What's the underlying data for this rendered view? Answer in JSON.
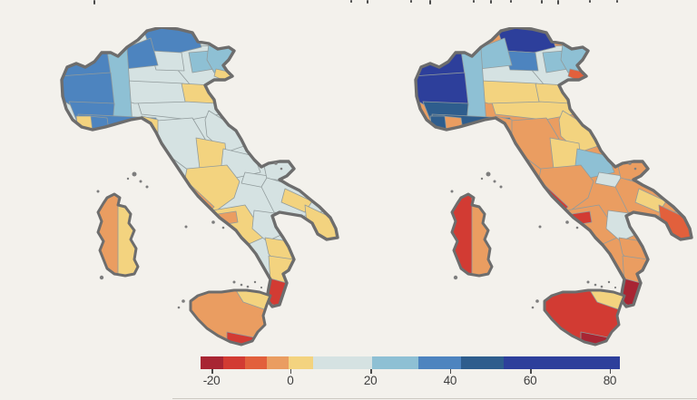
{
  "page": {
    "background": "#f3f1ec"
  },
  "legend": {
    "ticks": [
      {
        "label": "-20",
        "pct": 2.6
      },
      {
        "label": "0",
        "pct": 21.4
      },
      {
        "label": "20",
        "pct": 40.5
      },
      {
        "label": "40",
        "pct": 59.5
      },
      {
        "label": "60",
        "pct": 78.6
      },
      {
        "label": "80",
        "pct": 97.6
      }
    ],
    "colors": [
      "#a82533",
      "#d23b33",
      "#e2603c",
      "#ea9d61",
      "#f3d37f",
      "#d5e2e2",
      "#8ec0d4",
      "#4d84bf",
      "#2e5d8d",
      "#2d3f9b"
    ],
    "thresholds": [
      -17,
      -11,
      -6,
      0,
      6,
      20,
      32,
      43,
      53
    ],
    "segments_pct": [
      5.4,
      5.2,
      5.2,
      5.2,
      5.8,
      14.1,
      11.0,
      10.2,
      10.2,
      27.7
    ]
  },
  "chart_data": {
    "type": "heatmap",
    "subtype": "choropleth_map_pair",
    "geography": "Italy, provinces",
    "legend": {
      "scale_ticks": [
        -20,
        0,
        20,
        40,
        60,
        80
      ],
      "range_approx": [
        -23,
        82
      ],
      "bin_thresholds": [
        -17,
        -11,
        -6,
        0,
        6,
        20,
        32,
        43,
        53
      ],
      "colors": [
        "#a82533",
        "#d23b33",
        "#e2603c",
        "#ea9d61",
        "#f3d37f",
        "#d5e2e2",
        "#8ec0d4",
        "#4d84bf",
        "#2e5d8d",
        "#2d3f9b"
      ]
    },
    "maps": [
      {
        "name": "left-map",
        "base": {
          "mainland": 12,
          "sicily": -3,
          "sardinia": 3
        },
        "values": {
          "valle_aosta": 37,
          "torino": 37,
          "piemonte_s": 37,
          "piemonte_e": 26,
          "lombardia_nw": 37,
          "alto_adige": 37,
          "trentino": 12,
          "lombardia": 12,
          "pavia_band": 12,
          "veneto": 12,
          "veneto_ne": 26,
          "friuli": 26,
          "friuli_coast": 3,
          "po_delta": 3,
          "emilia": 12,
          "liguria": 37,
          "liguria_sv": 37,
          "liguria_w": 3,
          "liguria_e": 3,
          "toscana": 12,
          "toscana_coast": -3,
          "marche": 12,
          "umbria": 3,
          "abruzzo": 12,
          "molise": 12,
          "lazio": 3,
          "roma_coast": -3,
          "campania": 3,
          "napoli": -3,
          "gargano": 12,
          "puglia": 12,
          "puglia_c": 3,
          "salento": 3,
          "basilicata": 12,
          "calabria_n": 3,
          "calabria_c": 3,
          "calabria_tip": -13,
          "sicilia": -3,
          "messina": 3,
          "sicilia_s": -13,
          "sardegna_w": -3,
          "sardegna_e": 3
        }
      },
      {
        "name": "right-map",
        "base": {
          "mainland": -3,
          "sicily": -13,
          "sardinia": -13
        },
        "values": {
          "valle_aosta": 70,
          "torino": 70,
          "piemonte_s": 48,
          "piemonte_e": 26,
          "lombardia_nw": 26,
          "alto_adige": 70,
          "trentino": 37,
          "lombardia": 12,
          "pavia_band": 3,
          "veneto": 12,
          "veneto_ne": 26,
          "friuli": 26,
          "friuli_coast": -8,
          "po_delta": 3,
          "emilia": 3,
          "liguria": 48,
          "liguria_sv": -3,
          "liguria_w": 48,
          "liguria_e": -3,
          "toscana": -3,
          "toscana_coast": -13,
          "marche": 3,
          "umbria": 3,
          "abruzzo": 26,
          "molise": 12,
          "lazio": -3,
          "roma_coast": -13,
          "campania": -3,
          "napoli": -13,
          "gargano": -3,
          "puglia": -3,
          "puglia_c": 3,
          "salento": -8,
          "basilicata": 12,
          "calabria_n": -3,
          "calabria_c": -3,
          "calabria_tip": -20,
          "sicilia": -13,
          "messina": 3,
          "sicilia_s": -20,
          "sardegna_w": -13,
          "sardegna_e": -3
        }
      }
    ]
  }
}
